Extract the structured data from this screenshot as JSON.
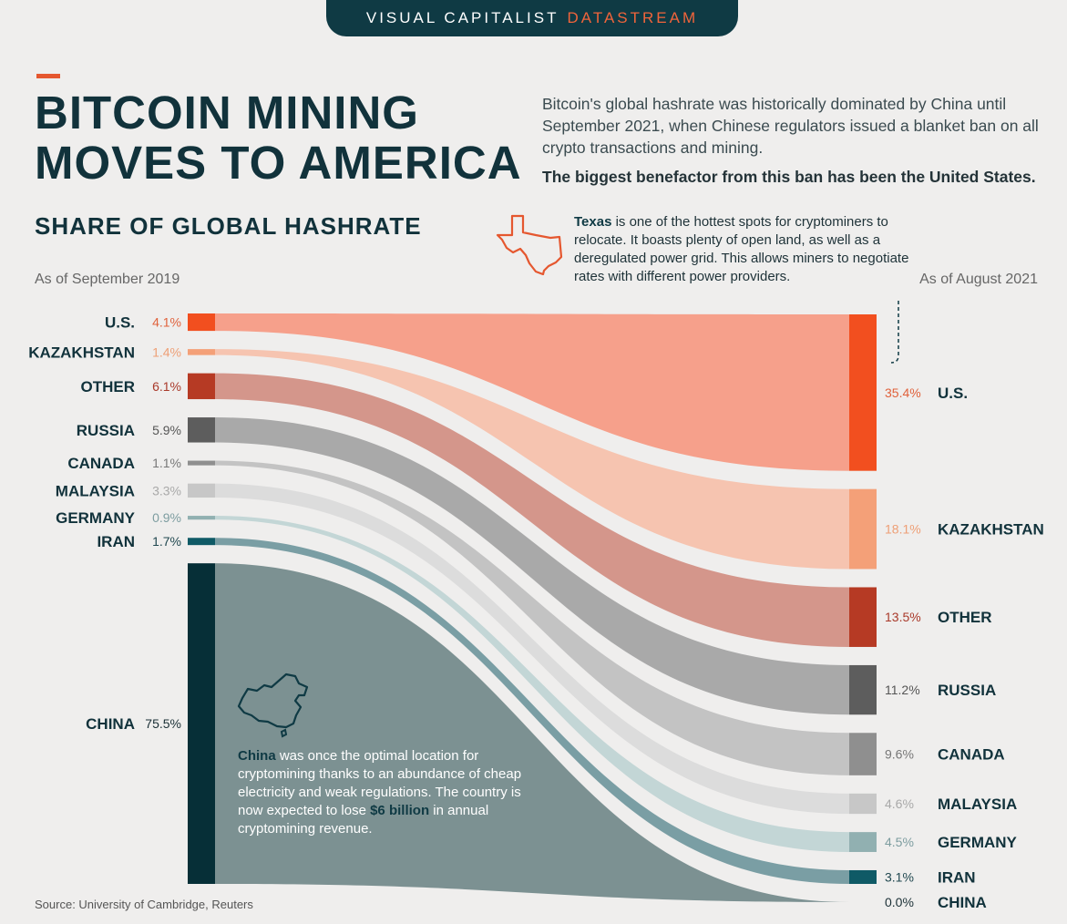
{
  "brand": {
    "name": "VISUAL CAPITALIST",
    "accent": "DATASTREAM"
  },
  "title": {
    "line1": "BITCOIN MINING",
    "line2": "MOVES TO AMERICA"
  },
  "intro": {
    "text": "Bitcoin's global hashrate was historically dominated by China until September 2021, when Chinese regulators issued a blanket ban on all crypto transactions and mining.",
    "emphasis": "The biggest benefactor from this ban has been the United States."
  },
  "texas_note": {
    "bold": "Texas",
    "text": " is one of the hottest spots for cryptominers to relocate. It boasts plenty of open land, as well as a deregulated power grid. This allows miners to negotiate rates with different power providers."
  },
  "china_note": {
    "bold1": "China",
    "text1": " was once the optimal location for cryptomining thanks to an abundance of cheap electricity and weak regulations. The country is now expected to lose ",
    "bold2": "$6 billion",
    "text2": " in annual cryptomining revenue."
  },
  "source": "Source: University of Cambridge, Reuters",
  "chart_data": {
    "type": "sankey",
    "title": "SHARE OF GLOBAL HASHRATE",
    "left_label": "As of September 2019",
    "right_label": "As of August 2021",
    "unit": "%",
    "series": [
      {
        "name": "U.S.",
        "left": 4.1,
        "right": 35.4,
        "left_text": "4.1%",
        "right_text": "35.4%",
        "color": "#f24f1f",
        "band": "#f6a08b",
        "label_color": "#e0613b"
      },
      {
        "name": "KAZAKHSTAN",
        "left": 1.4,
        "right": 18.1,
        "left_text": "1.4%",
        "right_text": "18.1%",
        "color": "#f4a078",
        "band": "#f6c4b0",
        "label_color": "#ee9f76"
      },
      {
        "name": "OTHER",
        "left": 6.1,
        "right": 13.5,
        "left_text": "6.1%",
        "right_text": "13.5%",
        "color": "#b63a24",
        "band": "#d4968b",
        "label_color": "#a9392a"
      },
      {
        "name": "RUSSIA",
        "left": 5.9,
        "right": 11.2,
        "left_text": "5.9%",
        "right_text": "11.2%",
        "color": "#5d5d5d",
        "band": "#a9a9a9",
        "label_color": "#555555"
      },
      {
        "name": "CANADA",
        "left": 1.1,
        "right": 9.6,
        "left_text": "1.1%",
        "right_text": "9.6%",
        "color": "#8f8f8f",
        "band": "#c3c3c3",
        "label_color": "#777777"
      },
      {
        "name": "MALAYSIA",
        "left": 3.3,
        "right": 4.6,
        "left_text": "3.3%",
        "right_text": "4.6%",
        "color": "#c7c7c7",
        "band": "#dcdcdc",
        "label_color": "#a9a9a9"
      },
      {
        "name": "GERMANY",
        "left": 0.9,
        "right": 4.5,
        "left_text": "0.9%",
        "right_text": "4.5%",
        "color": "#91b0b1",
        "band": "#c3d6d6",
        "label_color": "#7d9da0"
      },
      {
        "name": "IRAN",
        "left": 1.7,
        "right": 3.1,
        "left_text": "1.7%",
        "right_text": "3.1%",
        "color": "#0f5a66",
        "band": "#7a9ea4",
        "label_color": "#214850"
      },
      {
        "name": "CHINA",
        "left": 75.5,
        "right": 0.0,
        "left_text": "75.5%",
        "right_text": "0.0%",
        "color": "#062f37",
        "band": "#7c9192",
        "label_color": "#1b3036"
      }
    ]
  }
}
